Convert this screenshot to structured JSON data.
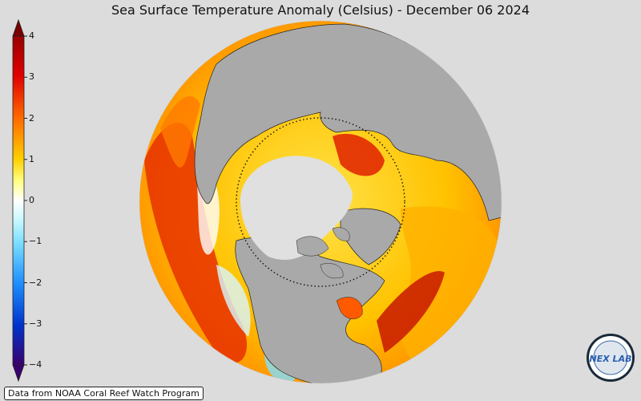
{
  "title": "Sea Surface Temperature Anomaly (Celsius) - December 06 2024",
  "colorbar": {
    "min": -4,
    "max": 4,
    "ticks": [
      "4",
      "3",
      "2",
      "1",
      "0",
      "−1",
      "−2",
      "−3",
      "−4"
    ],
    "colors": [
      "#2a0066",
      "#0033cc",
      "#1e90ff",
      "#7fe0ff",
      "#ffffff",
      "#ffff33",
      "#ffa500",
      "#ff3300",
      "#990000"
    ]
  },
  "map": {
    "projection": "orthographic",
    "land_color": "#a9a9a9",
    "ice_color": "#e0e0e0"
  },
  "source_text": "Data from NOAA Coral Reef Watch Program",
  "logo_text": "NEX LAB"
}
